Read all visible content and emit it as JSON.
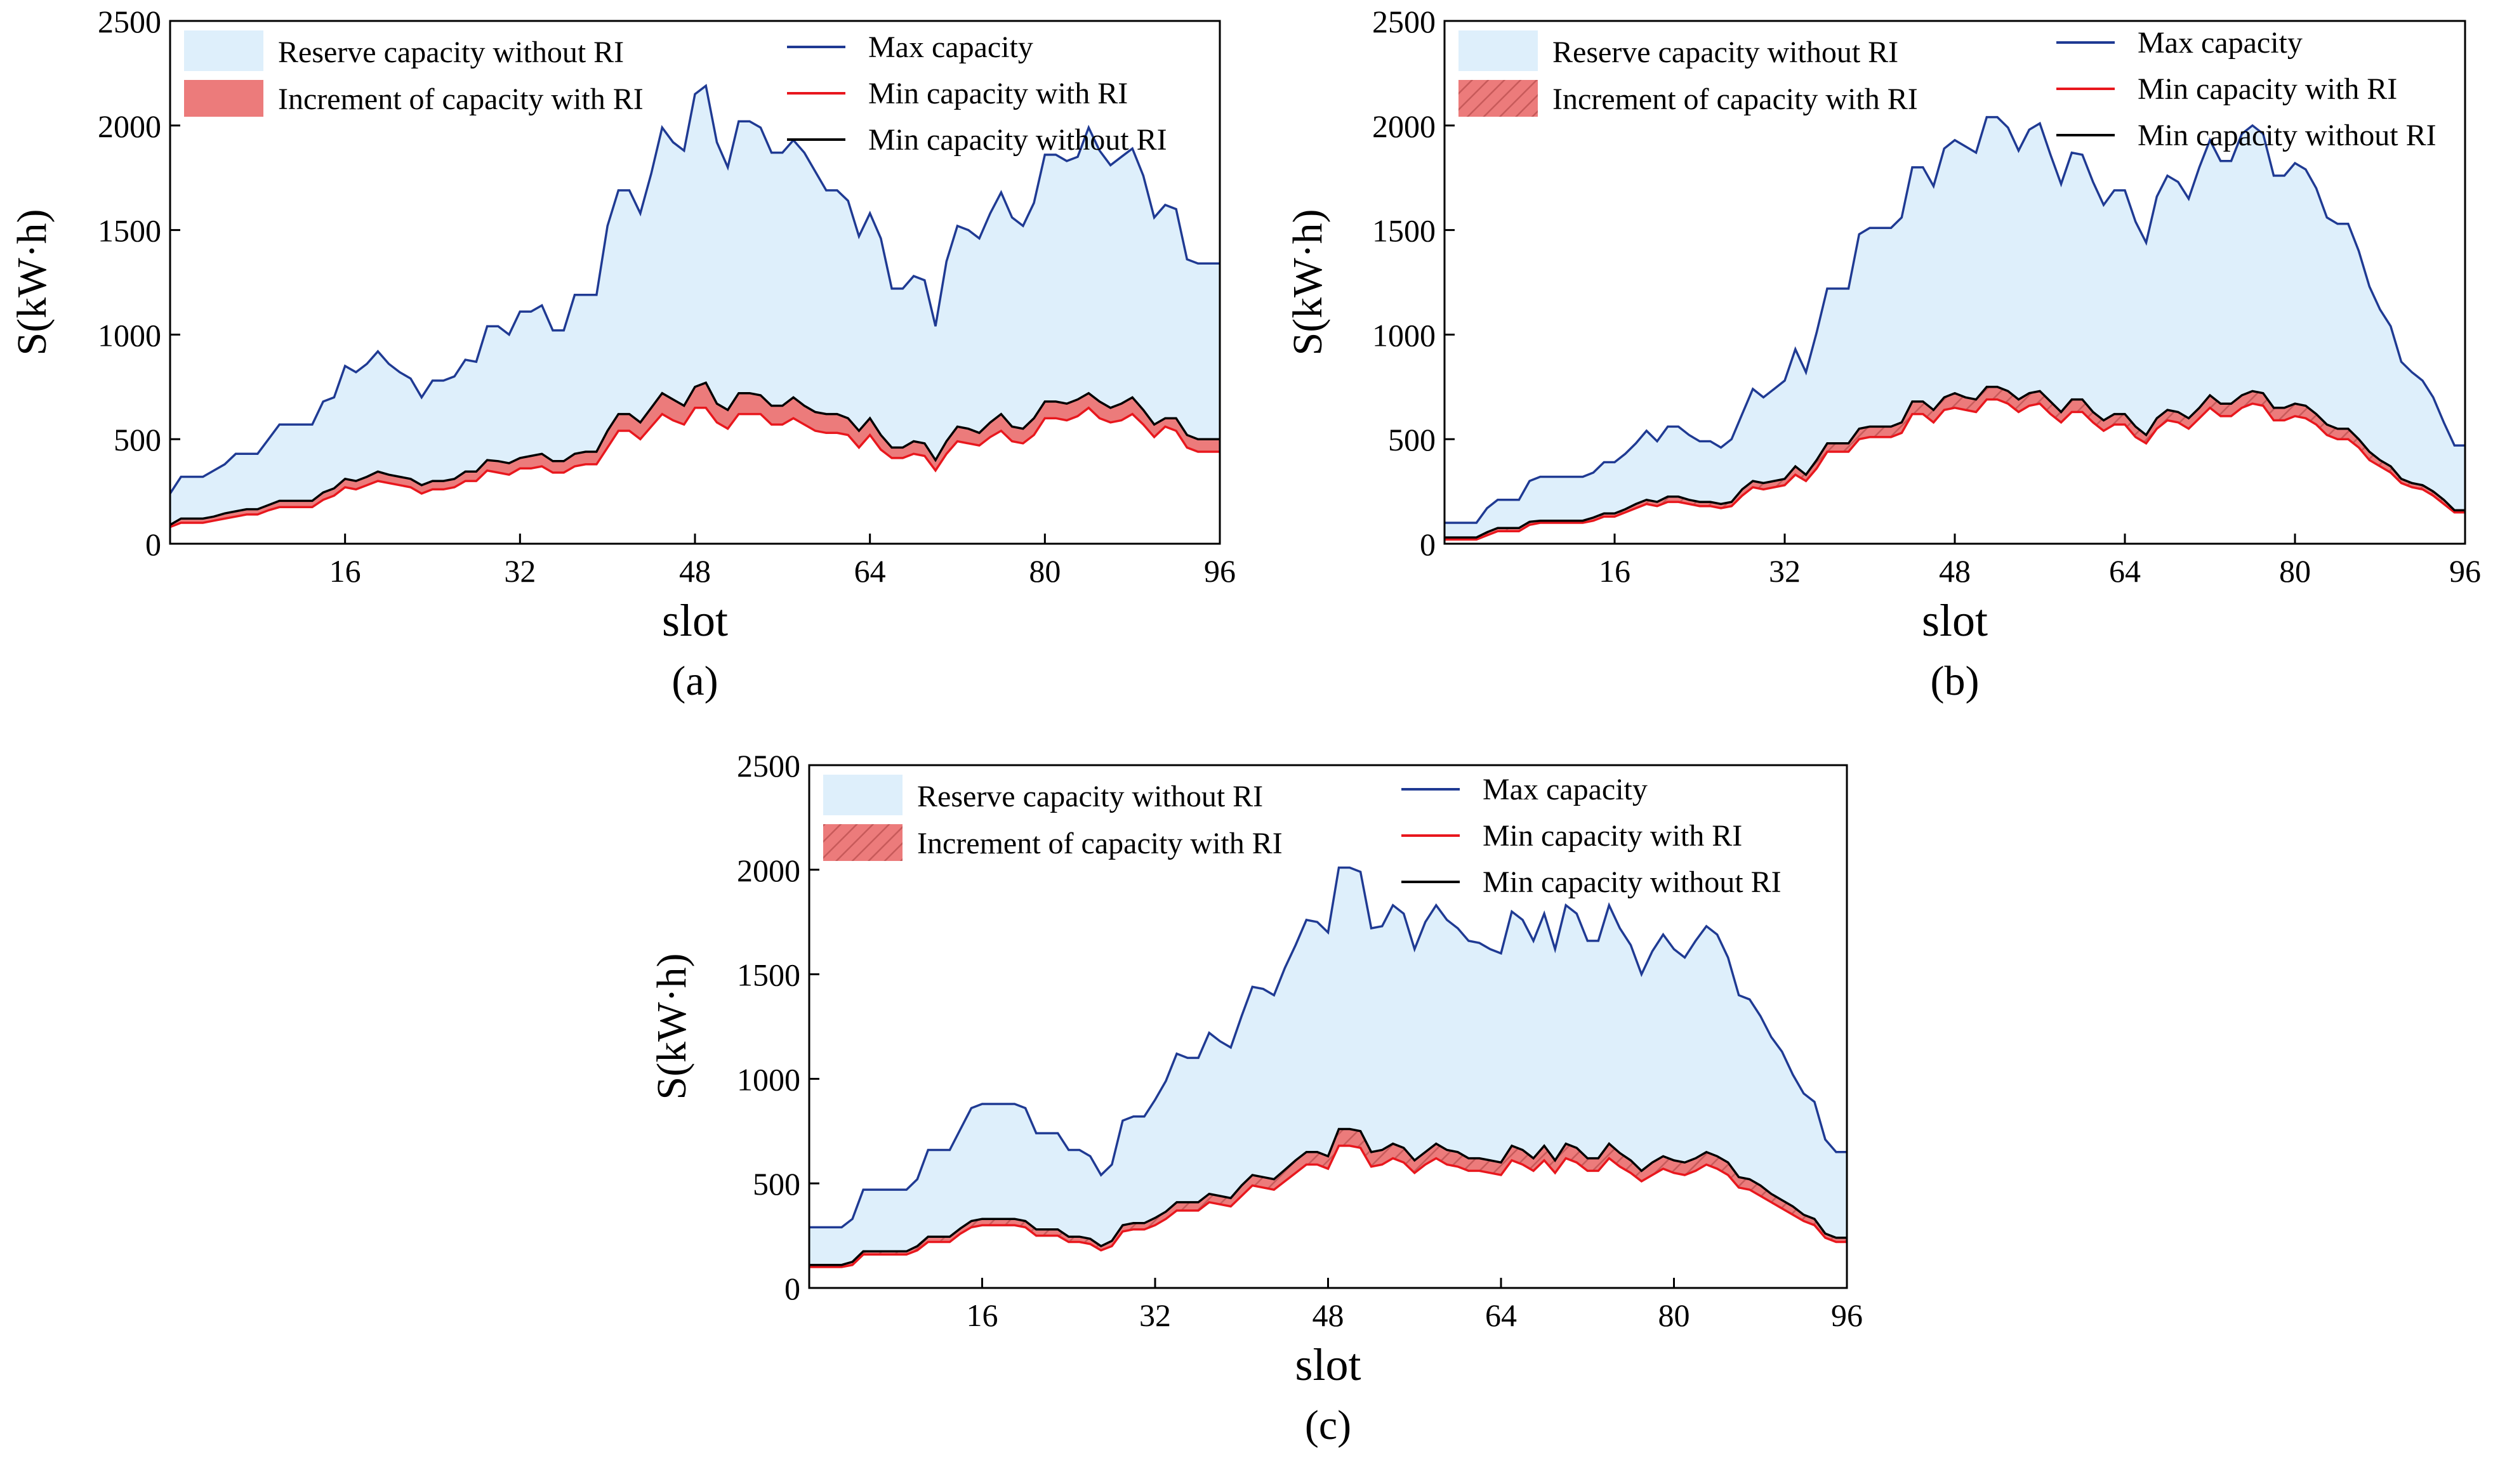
{
  "legend": {
    "reserve": "Reserve capacity without RI",
    "increment": "Increment of capacity with RI",
    "max": "Max capacity",
    "min_with": "Min capacity with RI",
    "min_without": "Min capacity without RI"
  },
  "colors": {
    "reserve_fill": "#deeffb",
    "increment_fill": "#ec7b7b",
    "hatch": "#c75a5a",
    "max_line": "#1f3a93",
    "min_with_line": "#e8171d",
    "min_without_line": "#000000"
  },
  "chart_data": [
    {
      "type": "area",
      "caption": "(a)",
      "xlabel": "slot",
      "ylabel": "S(kW·h)",
      "xlim": [
        0,
        96
      ],
      "ylim": [
        0,
        2500
      ],
      "xticks": [
        16,
        32,
        48,
        64,
        80,
        96
      ],
      "yticks": [
        0,
        500,
        1000,
        1500,
        2000,
        2500
      ],
      "hatched_increment": false,
      "series": [
        {
          "name": "Max capacity",
          "values": [
            240,
            320,
            320,
            320,
            350,
            380,
            430,
            430,
            430,
            500,
            570,
            570,
            570,
            570,
            680,
            700,
            850,
            820,
            860,
            920,
            860,
            820,
            790,
            700,
            780,
            780,
            800,
            880,
            870,
            1040,
            1040,
            1000,
            1110,
            1110,
            1140,
            1020,
            1020,
            1190,
            1190,
            1190,
            1520,
            1690,
            1690,
            1580,
            1770,
            1990,
            1920,
            1880,
            2150,
            2190,
            1920,
            1800,
            2020,
            2020,
            1990,
            1870,
            1870,
            1930,
            1870,
            1780,
            1690,
            1690,
            1640,
            1470,
            1580,
            1460,
            1220,
            1220,
            1280,
            1260,
            1040,
            1350,
            1520,
            1500,
            1460,
            1580,
            1680,
            1560,
            1520,
            1630,
            1860,
            1860,
            1830,
            1850,
            1990,
            1880,
            1810,
            1850,
            1890,
            1760,
            1560,
            1620,
            1600,
            1360,
            1340,
            1340,
            1340
          ]
        },
        {
          "name": "Min capacity with RI",
          "values": [
            80,
            100,
            100,
            100,
            110,
            120,
            130,
            140,
            140,
            160,
            175,
            175,
            175,
            175,
            210,
            230,
            270,
            260,
            280,
            300,
            290,
            280,
            270,
            240,
            260,
            260,
            270,
            300,
            300,
            350,
            340,
            330,
            360,
            360,
            370,
            340,
            340,
            370,
            380,
            380,
            460,
            540,
            540,
            500,
            560,
            620,
            590,
            570,
            650,
            650,
            580,
            550,
            620,
            620,
            620,
            570,
            570,
            600,
            570,
            540,
            530,
            530,
            520,
            460,
            520,
            450,
            410,
            410,
            430,
            420,
            350,
            430,
            490,
            480,
            470,
            510,
            540,
            490,
            480,
            520,
            600,
            600,
            590,
            610,
            650,
            600,
            580,
            590,
            620,
            570,
            510,
            560,
            540,
            460,
            440,
            440,
            440
          ]
        },
        {
          "name": "Min capacity without RI",
          "values": [
            90,
            120,
            120,
            120,
            130,
            145,
            155,
            165,
            165,
            185,
            205,
            205,
            205,
            205,
            245,
            265,
            310,
            300,
            320,
            345,
            330,
            320,
            310,
            280,
            300,
            300,
            310,
            345,
            345,
            400,
            395,
            385,
            410,
            420,
            430,
            395,
            395,
            430,
            440,
            440,
            540,
            620,
            620,
            580,
            650,
            720,
            690,
            660,
            750,
            770,
            670,
            640,
            720,
            720,
            710,
            660,
            660,
            700,
            660,
            630,
            620,
            620,
            600,
            540,
            600,
            520,
            460,
            460,
            490,
            480,
            400,
            490,
            560,
            550,
            530,
            580,
            620,
            560,
            550,
            600,
            680,
            680,
            670,
            690,
            720,
            680,
            650,
            670,
            700,
            640,
            570,
            600,
            600,
            520,
            500,
            500,
            500
          ]
        }
      ]
    },
    {
      "type": "area",
      "caption": "(b)",
      "xlabel": "slot",
      "ylabel": "S(kW·h)",
      "xlim": [
        0,
        96
      ],
      "ylim": [
        0,
        2500
      ],
      "xticks": [
        16,
        32,
        48,
        64,
        80,
        96
      ],
      "yticks": [
        0,
        500,
        1000,
        1500,
        2000,
        2500
      ],
      "hatched_increment": true,
      "series": [
        {
          "name": "Max capacity",
          "values": [
            100,
            100,
            100,
            100,
            170,
            210,
            210,
            210,
            300,
            320,
            320,
            320,
            320,
            320,
            340,
            390,
            390,
            430,
            480,
            540,
            490,
            560,
            560,
            520,
            490,
            490,
            460,
            500,
            620,
            740,
            700,
            740,
            780,
            930,
            820,
            1010,
            1220,
            1220,
            1220,
            1480,
            1510,
            1510,
            1510,
            1560,
            1800,
            1800,
            1710,
            1890,
            1930,
            1900,
            1870,
            2040,
            2040,
            1990,
            1880,
            1980,
            2010,
            1860,
            1720,
            1870,
            1860,
            1730,
            1620,
            1690,
            1690,
            1540,
            1440,
            1660,
            1760,
            1730,
            1650,
            1800,
            1930,
            1830,
            1830,
            1960,
            2000,
            1960,
            1760,
            1760,
            1820,
            1790,
            1700,
            1560,
            1530,
            1530,
            1400,
            1230,
            1120,
            1040,
            870,
            820,
            780,
            700,
            580,
            470,
            470
          ]
        },
        {
          "name": "Min capacity with RI",
          "values": [
            20,
            20,
            20,
            20,
            40,
            60,
            60,
            60,
            90,
            100,
            100,
            100,
            100,
            100,
            110,
            130,
            130,
            150,
            170,
            190,
            180,
            200,
            200,
            190,
            180,
            180,
            170,
            180,
            230,
            270,
            260,
            270,
            280,
            330,
            300,
            360,
            440,
            440,
            440,
            500,
            510,
            510,
            510,
            530,
            620,
            620,
            580,
            640,
            650,
            640,
            630,
            690,
            690,
            670,
            630,
            660,
            670,
            620,
            580,
            630,
            630,
            580,
            540,
            570,
            570,
            510,
            480,
            550,
            590,
            580,
            550,
            600,
            650,
            610,
            610,
            650,
            670,
            660,
            590,
            590,
            610,
            600,
            570,
            520,
            500,
            500,
            460,
            400,
            370,
            340,
            290,
            270,
            260,
            230,
            190,
            150,
            150
          ]
        },
        {
          "name": "Min capacity without RI",
          "values": [
            30,
            30,
            30,
            30,
            55,
            75,
            75,
            75,
            105,
            110,
            110,
            110,
            110,
            110,
            125,
            145,
            145,
            165,
            190,
            210,
            200,
            225,
            225,
            210,
            200,
            200,
            190,
            200,
            260,
            300,
            290,
            300,
            310,
            370,
            330,
            400,
            480,
            480,
            480,
            550,
            560,
            560,
            560,
            580,
            680,
            680,
            640,
            700,
            720,
            700,
            690,
            750,
            750,
            730,
            690,
            720,
            730,
            680,
            630,
            690,
            690,
            630,
            590,
            620,
            620,
            560,
            520,
            600,
            640,
            630,
            600,
            650,
            710,
            670,
            670,
            710,
            730,
            720,
            650,
            650,
            670,
            660,
            620,
            570,
            550,
            550,
            500,
            440,
            400,
            370,
            310,
            290,
            280,
            250,
            210,
            160,
            160
          ]
        }
      ]
    },
    {
      "type": "area",
      "caption": "(c)",
      "xlabel": "slot",
      "ylabel": "S(kW·h)",
      "xlim": [
        0,
        96
      ],
      "ylim": [
        0,
        2500
      ],
      "xticks": [
        16,
        32,
        48,
        64,
        80,
        96
      ],
      "yticks": [
        0,
        500,
        1000,
        1500,
        2000,
        2500
      ],
      "hatched_increment": true,
      "series": [
        {
          "name": "Max capacity",
          "values": [
            290,
            290,
            290,
            290,
            330,
            470,
            470,
            470,
            470,
            470,
            520,
            660,
            660,
            660,
            760,
            860,
            880,
            880,
            880,
            880,
            860,
            740,
            740,
            740,
            660,
            660,
            630,
            540,
            590,
            800,
            820,
            820,
            900,
            990,
            1120,
            1100,
            1100,
            1220,
            1180,
            1150,
            1300,
            1440,
            1430,
            1400,
            1530,
            1640,
            1760,
            1750,
            1700,
            2010,
            2010,
            1990,
            1720,
            1730,
            1830,
            1790,
            1620,
            1750,
            1830,
            1760,
            1720,
            1660,
            1650,
            1620,
            1600,
            1800,
            1760,
            1660,
            1790,
            1620,
            1830,
            1790,
            1660,
            1660,
            1830,
            1720,
            1640,
            1500,
            1610,
            1690,
            1620,
            1580,
            1660,
            1730,
            1690,
            1580,
            1400,
            1380,
            1300,
            1200,
            1130,
            1020,
            930,
            890,
            710,
            650,
            650
          ]
        },
        {
          "name": "Min capacity with RI",
          "values": [
            100,
            100,
            100,
            100,
            110,
            160,
            160,
            160,
            160,
            160,
            180,
            220,
            220,
            220,
            260,
            290,
            300,
            300,
            300,
            300,
            290,
            250,
            250,
            250,
            220,
            220,
            210,
            180,
            200,
            270,
            280,
            280,
            300,
            330,
            370,
            370,
            370,
            410,
            400,
            390,
            440,
            490,
            480,
            470,
            510,
            550,
            590,
            590,
            570,
            680,
            680,
            670,
            580,
            590,
            620,
            600,
            550,
            590,
            620,
            590,
            580,
            560,
            560,
            550,
            540,
            610,
            590,
            560,
            610,
            550,
            620,
            600,
            560,
            560,
            620,
            580,
            550,
            510,
            540,
            570,
            550,
            540,
            560,
            590,
            570,
            540,
            480,
            470,
            440,
            410,
            380,
            350,
            320,
            300,
            240,
            220,
            220
          ]
        },
        {
          "name": "Min capacity without RI",
          "values": [
            110,
            110,
            110,
            110,
            125,
            175,
            175,
            175,
            175,
            175,
            200,
            245,
            245,
            245,
            285,
            320,
            330,
            330,
            330,
            330,
            320,
            280,
            280,
            280,
            245,
            245,
            235,
            200,
            225,
            300,
            310,
            310,
            335,
            365,
            410,
            410,
            410,
            450,
            440,
            430,
            490,
            540,
            530,
            520,
            565,
            610,
            650,
            650,
            630,
            760,
            760,
            750,
            650,
            660,
            690,
            670,
            610,
            650,
            690,
            660,
            650,
            620,
            620,
            610,
            600,
            680,
            660,
            620,
            680,
            610,
            690,
            670,
            620,
            620,
            690,
            645,
            610,
            560,
            600,
            630,
            610,
            600,
            620,
            650,
            630,
            600,
            530,
            520,
            490,
            450,
            420,
            390,
            350,
            330,
            260,
            240,
            240
          ]
        }
      ]
    }
  ]
}
